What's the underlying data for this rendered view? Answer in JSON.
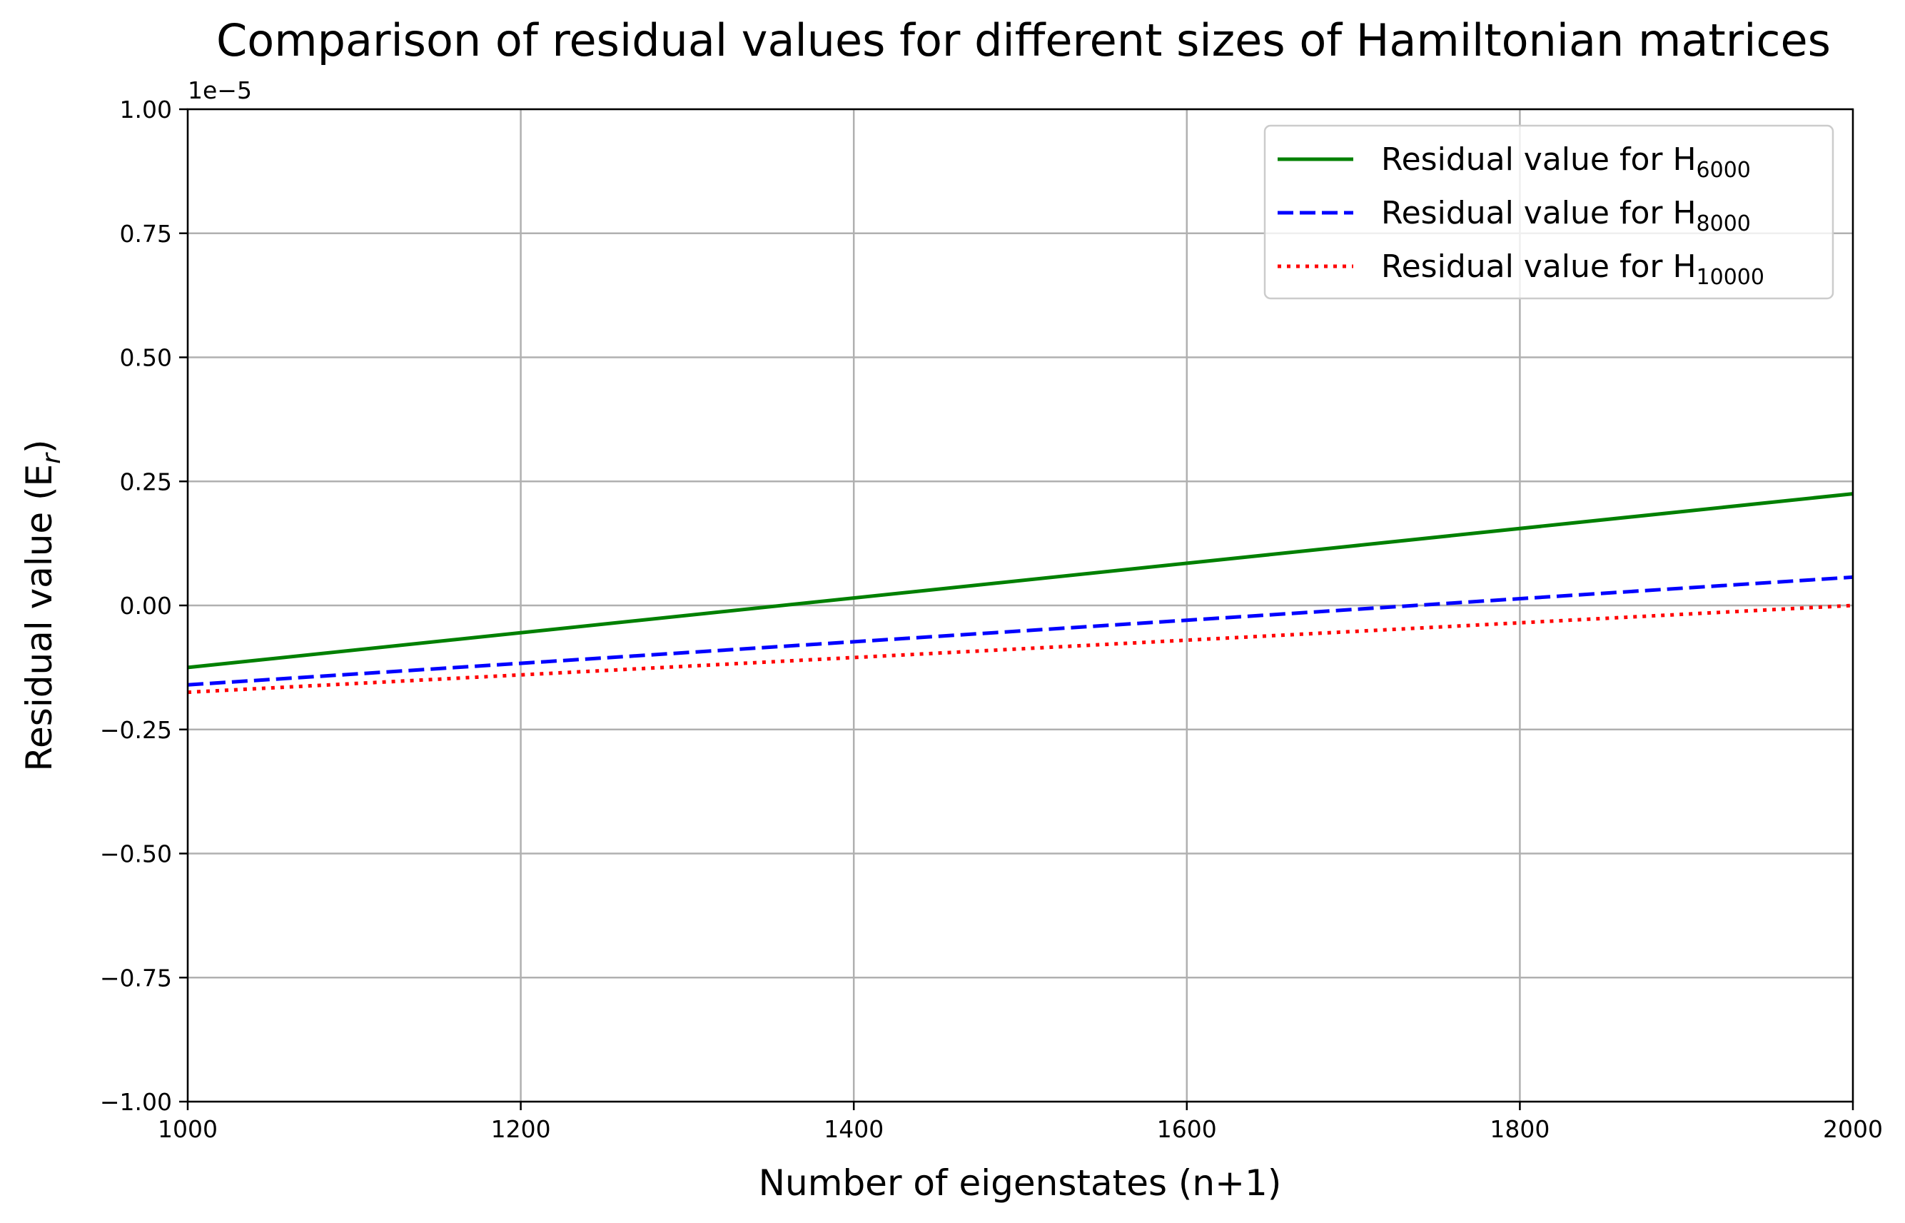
{
  "chart_data": {
    "type": "line",
    "title": "Comparison of residual values for different sizes of Hamiltonian matrices",
    "xlabel": "Number of eigenstates (n+1)",
    "ylabel": "Residual value (E",
    "ylabel_sub": "r",
    "ylabel_close": ")",
    "y_scale_note": "1e−5",
    "xlim": [
      1000,
      2000
    ],
    "ylim": [
      -1.0,
      1.0
    ],
    "xticks": [
      1000,
      1200,
      1400,
      1600,
      1800,
      2000
    ],
    "xtick_labels": [
      "1000",
      "1200",
      "1400",
      "1600",
      "1800",
      "2000"
    ],
    "yticks": [
      -1.0,
      -0.75,
      -0.5,
      -0.25,
      0.0,
      0.25,
      0.5,
      0.75,
      1.0
    ],
    "ytick_labels": [
      "−1.00",
      "−0.75",
      "−0.50",
      "−0.25",
      "0.00",
      "0.25",
      "0.50",
      "0.75",
      "1.00"
    ],
    "grid": true,
    "legend_position": "top-right",
    "series": [
      {
        "name": "Residual value for H",
        "name_sub": "6000",
        "color": "#008000",
        "style": "solid",
        "x": [
          1000,
          2000
        ],
        "y": [
          -0.125,
          0.225
        ]
      },
      {
        "name": "Residual value for H",
        "name_sub": "8000",
        "color": "#0000ff",
        "style": "dashed",
        "x": [
          1000,
          2000
        ],
        "y": [
          -0.16,
          0.057
        ]
      },
      {
        "name": "Residual value for H",
        "name_sub": "10000",
        "color": "#ff0000",
        "style": "dotted",
        "x": [
          1000,
          2000
        ],
        "y": [
          -0.175,
          0.0
        ]
      }
    ]
  }
}
